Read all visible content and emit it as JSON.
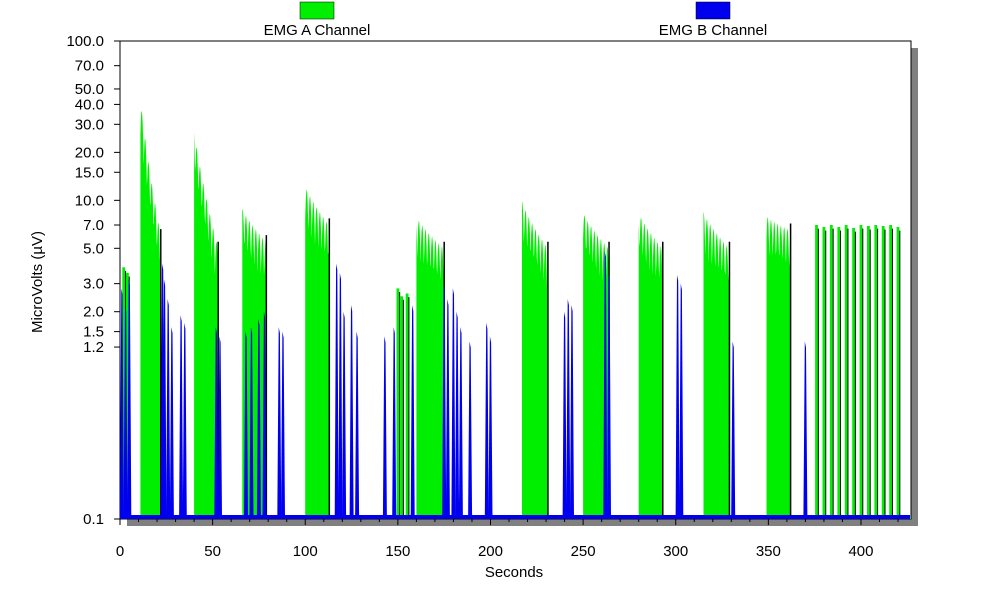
{
  "chart_data": {
    "type": "area",
    "xlabel": "Seconds",
    "ylabel": "MicroVolts (µV)",
    "yscale": "log",
    "xlim": [
      0,
      427
    ],
    "ylim": [
      0.1,
      100.0
    ],
    "x_ticks": [
      0,
      50,
      100,
      150,
      200,
      250,
      300,
      350,
      400
    ],
    "y_ticks": [
      0.1,
      1.2,
      1.5,
      2.0,
      3.0,
      5.0,
      7.0,
      10.0,
      15.0,
      20.0,
      30.0,
      40.0,
      50.0,
      70.0,
      100.0
    ],
    "legend_position": "top",
    "grid": false,
    "series": [
      {
        "name": "EMG  A  Channel",
        "color": "#00ee00",
        "bursts": [
          {
            "start": 11,
            "end": 22,
            "peak": 47.0,
            "end_level": 6.0
          },
          {
            "start": 40,
            "end": 53,
            "peak": 29.0,
            "end_level": 5.0
          },
          {
            "start": 66,
            "end": 79,
            "peak": 9.0,
            "end_level": 5.5
          },
          {
            "start": 100,
            "end": 113,
            "peak": 12.5,
            "end_level": 7.0
          },
          {
            "start": 160,
            "end": 175,
            "peak": 8.0,
            "end_level": 5.0
          },
          {
            "start": 217,
            "end": 231,
            "peak": 10.0,
            "end_level": 5.0
          },
          {
            "start": 250,
            "end": 264,
            "peak": 8.5,
            "end_level": 5.0
          },
          {
            "start": 280,
            "end": 293,
            "peak": 8.5,
            "end_level": 5.0
          },
          {
            "start": 315,
            "end": 329,
            "peak": 8.5,
            "end_level": 5.0
          },
          {
            "start": 349,
            "end": 362,
            "peak": 8.0,
            "end_level": 6.5
          }
        ],
        "spikes": [
          {
            "x": 2,
            "value": 3.8
          },
          {
            "x": 4,
            "value": 3.5
          },
          {
            "x": 150,
            "value": 2.8
          },
          {
            "x": 152,
            "value": 2.5
          },
          {
            "x": 155,
            "value": 2.6
          },
          {
            "x": 376,
            "value": 7.0
          },
          {
            "x": 380,
            "value": 6.8
          },
          {
            "x": 384,
            "value": 7.0
          },
          {
            "x": 388,
            "value": 6.8
          },
          {
            "x": 392,
            "value": 7.0
          },
          {
            "x": 396,
            "value": 6.7
          },
          {
            "x": 400,
            "value": 7.0
          },
          {
            "x": 404,
            "value": 6.9
          },
          {
            "x": 408,
            "value": 7.0
          },
          {
            "x": 412,
            "value": 6.9
          },
          {
            "x": 416,
            "value": 7.0
          },
          {
            "x": 420,
            "value": 6.8
          }
        ],
        "baseline": 0.1
      },
      {
        "name": "EMG  B  Channel",
        "color": "#0000ee",
        "peaks": [
          {
            "x": 1,
            "value": 2.8
          },
          {
            "x": 3,
            "value": 2.2
          },
          {
            "x": 5,
            "value": 3.2
          },
          {
            "x": 23,
            "value": 4.0
          },
          {
            "x": 24,
            "value": 3.2
          },
          {
            "x": 26,
            "value": 2.4
          },
          {
            "x": 28,
            "value": 1.6
          },
          {
            "x": 33,
            "value": 1.9
          },
          {
            "x": 35,
            "value": 1.7
          },
          {
            "x": 52,
            "value": 1.6
          },
          {
            "x": 54,
            "value": 1.4
          },
          {
            "x": 68,
            "value": 1.5
          },
          {
            "x": 71,
            "value": 1.6
          },
          {
            "x": 75,
            "value": 1.8
          },
          {
            "x": 78,
            "value": 2.0
          },
          {
            "x": 86,
            "value": 1.6
          },
          {
            "x": 88,
            "value": 1.5
          },
          {
            "x": 117,
            "value": 4.0
          },
          {
            "x": 119,
            "value": 3.5
          },
          {
            "x": 121,
            "value": 2.0
          },
          {
            "x": 125,
            "value": 2.2
          },
          {
            "x": 128,
            "value": 1.5
          },
          {
            "x": 143,
            "value": 1.4
          },
          {
            "x": 148,
            "value": 1.6
          },
          {
            "x": 158,
            "value": 2.2
          },
          {
            "x": 175,
            "value": 3.0
          },
          {
            "x": 177,
            "value": 2.4
          },
          {
            "x": 180,
            "value": 2.8
          },
          {
            "x": 182,
            "value": 2.0
          },
          {
            "x": 184,
            "value": 1.6
          },
          {
            "x": 189,
            "value": 1.3
          },
          {
            "x": 198,
            "value": 1.7
          },
          {
            "x": 200,
            "value": 1.4
          },
          {
            "x": 240,
            "value": 2.0
          },
          {
            "x": 242,
            "value": 2.4
          },
          {
            "x": 244,
            "value": 2.2
          },
          {
            "x": 262,
            "value": 4.8
          },
          {
            "x": 264,
            "value": 3.5
          },
          {
            "x": 301,
            "value": 3.4
          },
          {
            "x": 303,
            "value": 3.0
          },
          {
            "x": 331,
            "value": 1.3
          },
          {
            "x": 370,
            "value": 1.3
          }
        ],
        "baseline": 0.1
      }
    ]
  }
}
